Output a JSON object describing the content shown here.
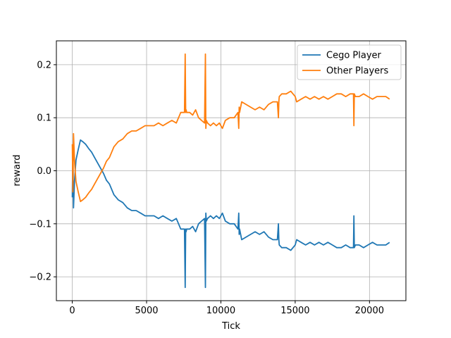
{
  "chart_data": {
    "type": "line",
    "title": "",
    "xlabel": "Tick",
    "ylabel": "reward",
    "xlim": [
      -1070,
      22450
    ],
    "ylim": [
      -0.245,
      0.245
    ],
    "xticks": [
      0,
      5000,
      10000,
      15000,
      20000
    ],
    "xtick_labels": [
      "0",
      "5000",
      "10000",
      "15000",
      "20000"
    ],
    "yticks": [
      -0.2,
      -0.1,
      0.0,
      0.1,
      0.2
    ],
    "ytick_labels": [
      "−0.2",
      "−0.1",
      "0.0",
      "0.1",
      "0.2"
    ],
    "grid": true,
    "legend_position": "top-right",
    "series": [
      {
        "name": "Cego Player",
        "color": "#1f77b4",
        "x": [
          0,
          40,
          80,
          150,
          250,
          400,
          550,
          700,
          900,
          1100,
          1300,
          1500,
          1700,
          1900,
          2100,
          2300,
          2500,
          2800,
          3100,
          3400,
          3700,
          4000,
          4300,
          4600,
          4900,
          5200,
          5500,
          5800,
          6100,
          6400,
          6700,
          7000,
          7300,
          7550,
          7600,
          7630,
          7660,
          7700,
          7900,
          8100,
          8300,
          8500,
          8700,
          8900,
          8960,
          8990,
          9020,
          9100,
          9300,
          9500,
          9700,
          9900,
          10100,
          10300,
          10600,
          10900,
          11150,
          11200,
          11230,
          11260,
          11400,
          11700,
          12000,
          12300,
          12600,
          12900,
          13200,
          13500,
          13800,
          13870,
          13900,
          13930,
          14100,
          14400,
          14700,
          15000,
          15100,
          15400,
          15700,
          16000,
          16300,
          16600,
          16900,
          17200,
          17500,
          17800,
          18100,
          18400,
          18700,
          18920,
          18950,
          18980,
          19050,
          19300,
          19600,
          19900,
          20200,
          20500,
          20800,
          21100,
          21350
        ],
        "values": [
          -0.05,
          0.04,
          -0.07,
          -0.02,
          0.02,
          0.04,
          0.058,
          0.055,
          0.05,
          0.042,
          0.035,
          0.025,
          0.015,
          0.005,
          -0.005,
          -0.018,
          -0.025,
          -0.045,
          -0.055,
          -0.06,
          -0.07,
          -0.075,
          -0.075,
          -0.08,
          -0.085,
          -0.085,
          -0.085,
          -0.09,
          -0.085,
          -0.09,
          -0.095,
          -0.09,
          -0.11,
          -0.11,
          -0.22,
          -0.11,
          -0.115,
          -0.11,
          -0.11,
          -0.105,
          -0.115,
          -0.1,
          -0.095,
          -0.09,
          -0.22,
          -0.08,
          -0.095,
          -0.09,
          -0.085,
          -0.09,
          -0.085,
          -0.09,
          -0.08,
          -0.095,
          -0.1,
          -0.1,
          -0.11,
          -0.08,
          -0.12,
          -0.11,
          -0.13,
          -0.125,
          -0.12,
          -0.115,
          -0.12,
          -0.115,
          -0.125,
          -0.13,
          -0.13,
          -0.1,
          -0.13,
          -0.14,
          -0.145,
          -0.145,
          -0.15,
          -0.14,
          -0.13,
          -0.135,
          -0.14,
          -0.135,
          -0.14,
          -0.135,
          -0.14,
          -0.135,
          -0.14,
          -0.145,
          -0.145,
          -0.14,
          -0.145,
          -0.145,
          -0.085,
          -0.145,
          -0.14,
          -0.14,
          -0.145,
          -0.14,
          -0.135,
          -0.14,
          -0.14,
          -0.14,
          -0.135
        ]
      },
      {
        "name": "Other Players",
        "color": "#ff7f0e",
        "x": [
          0,
          40,
          80,
          150,
          250,
          400,
          550,
          700,
          900,
          1100,
          1300,
          1500,
          1700,
          1900,
          2100,
          2300,
          2500,
          2800,
          3100,
          3400,
          3700,
          4000,
          4300,
          4600,
          4900,
          5200,
          5500,
          5800,
          6100,
          6400,
          6700,
          7000,
          7300,
          7550,
          7600,
          7630,
          7660,
          7700,
          7900,
          8100,
          8300,
          8500,
          8700,
          8900,
          8960,
          8990,
          9020,
          9100,
          9300,
          9500,
          9700,
          9900,
          10100,
          10300,
          10600,
          10900,
          11150,
          11200,
          11230,
          11260,
          11400,
          11700,
          12000,
          12300,
          12600,
          12900,
          13200,
          13500,
          13800,
          13870,
          13900,
          13930,
          14100,
          14400,
          14700,
          15000,
          15100,
          15400,
          15700,
          16000,
          16300,
          16600,
          16900,
          17200,
          17500,
          17800,
          18100,
          18400,
          18700,
          18920,
          18950,
          18980,
          19050,
          19300,
          19600,
          19900,
          20200,
          20500,
          20800,
          21100,
          21350
        ],
        "values": [
          0.05,
          -0.04,
          0.07,
          0.02,
          -0.02,
          -0.04,
          -0.058,
          -0.055,
          -0.05,
          -0.042,
          -0.035,
          -0.025,
          -0.015,
          -0.005,
          0.005,
          0.018,
          0.025,
          0.045,
          0.055,
          0.06,
          0.07,
          0.075,
          0.075,
          0.08,
          0.085,
          0.085,
          0.085,
          0.09,
          0.085,
          0.09,
          0.095,
          0.09,
          0.11,
          0.11,
          0.22,
          0.11,
          0.115,
          0.11,
          0.11,
          0.105,
          0.115,
          0.1,
          0.095,
          0.09,
          0.22,
          0.08,
          0.095,
          0.09,
          0.085,
          0.09,
          0.085,
          0.09,
          0.08,
          0.095,
          0.1,
          0.1,
          0.11,
          0.08,
          0.12,
          0.11,
          0.13,
          0.125,
          0.12,
          0.115,
          0.12,
          0.115,
          0.125,
          0.13,
          0.13,
          0.1,
          0.13,
          0.14,
          0.145,
          0.145,
          0.15,
          0.14,
          0.13,
          0.135,
          0.14,
          0.135,
          0.14,
          0.135,
          0.14,
          0.135,
          0.14,
          0.145,
          0.145,
          0.14,
          0.145,
          0.145,
          0.085,
          0.145,
          0.14,
          0.14,
          0.145,
          0.14,
          0.135,
          0.14,
          0.14,
          0.14,
          0.135
        ]
      }
    ]
  }
}
